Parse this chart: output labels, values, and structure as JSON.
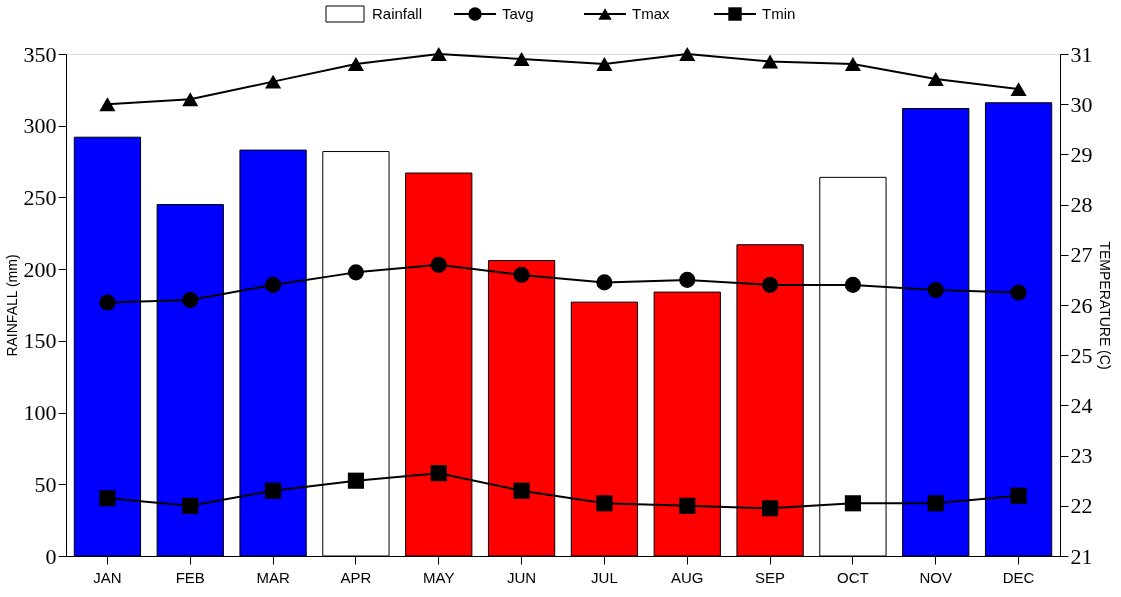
{
  "chart_data": {
    "type": "bar",
    "categories": [
      "JAN",
      "FEB",
      "MAR",
      "APR",
      "MAY",
      "JUN",
      "JUL",
      "AUG",
      "SEP",
      "OCT",
      "NOV",
      "DEC"
    ],
    "ylabel": "RAINFALL (mm)",
    "y2label": "TEMPERATURE (C)",
    "ylim": [
      0,
      350
    ],
    "yticks": [
      0,
      50,
      100,
      150,
      200,
      250,
      300,
      350
    ],
    "y2lim": [
      21,
      31
    ],
    "y2ticks": [
      21,
      22,
      23,
      24,
      25,
      26,
      27,
      28,
      29,
      30,
      31
    ],
    "legend": "top",
    "series": [
      {
        "name": "Rainfall",
        "color": "#ffffff",
        "colors": [
          "#0000ff",
          "#0000ff",
          "#0000ff",
          "#ffffff",
          "#ff0000",
          "#ff0000",
          "#ff0000",
          "#ff0000",
          "#ff0000",
          "#ffffff",
          "#0000ff",
          "#0000ff"
        ],
        "values": [
          292,
          245,
          283,
          282,
          267,
          206,
          177,
          184,
          217,
          264,
          312,
          316
        ]
      },
      {
        "name": "Tavg",
        "type": "line",
        "axis": "y2",
        "color": "#000000",
        "marker": "circle",
        "values": [
          26.05,
          26.1,
          26.4,
          26.65,
          26.8,
          26.6,
          26.45,
          26.5,
          26.4,
          26.4,
          26.3,
          26.25
        ]
      },
      {
        "name": "Tmax",
        "type": "line",
        "axis": "y2",
        "color": "#000000",
        "marker": "triangle",
        "values": [
          30.0,
          30.1,
          30.45,
          30.8,
          31.0,
          30.9,
          30.8,
          31.0,
          30.85,
          30.8,
          30.5,
          30.3
        ]
      },
      {
        "name": "Tmin",
        "type": "line",
        "axis": "y2",
        "color": "#000000",
        "marker": "square",
        "values": [
          22.15,
          22.0,
          22.3,
          22.5,
          22.65,
          22.3,
          22.05,
          22.0,
          21.95,
          22.05,
          22.05,
          22.2
        ]
      }
    ]
  }
}
